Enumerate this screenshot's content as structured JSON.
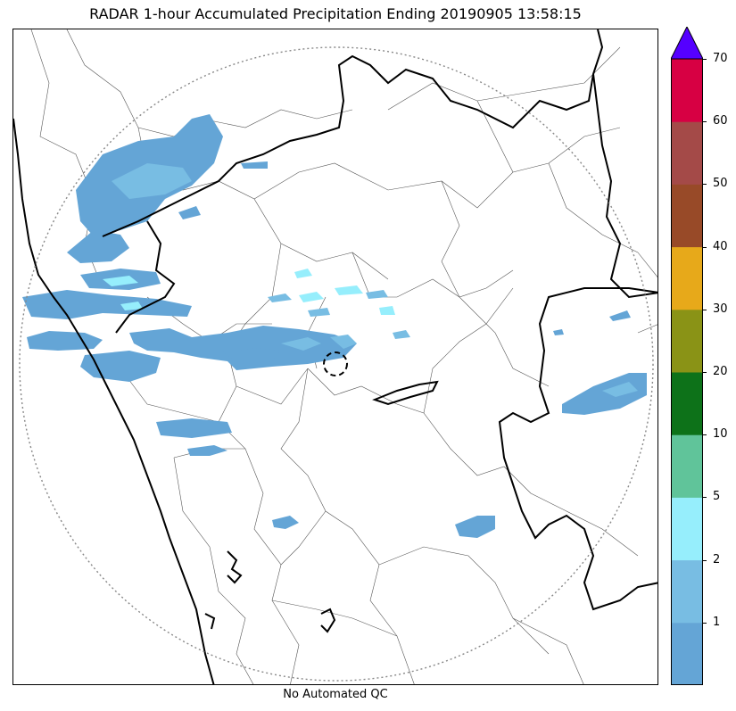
{
  "title": "RADAR 1-hour Accumulated Precipitation Ending 20190905 13:58:15",
  "footer_note": "No Automated QC",
  "colorbar": {
    "extend": "max",
    "over_color": "#5500ff",
    "bins": [
      {
        "color": "#64a5d6"
      },
      {
        "color": "#78bde3"
      },
      {
        "color": "#96eefc"
      },
      {
        "color": "#60c49a"
      },
      {
        "color": "#0d7219"
      },
      {
        "color": "#8a9316"
      },
      {
        "color": "#e7a91a"
      },
      {
        "color": "#984a28"
      },
      {
        "color": "#a44a48"
      },
      {
        "color": "#d70043"
      }
    ],
    "ticks": [
      "1",
      "2",
      "5",
      "10",
      "20",
      "30",
      "40",
      "50",
      "60",
      "70"
    ]
  },
  "map": {
    "radar_range_ring": "dotted gray circle",
    "radar_site_marker": "dashed black circle",
    "precip_color_light": "#64a5d6",
    "precip_color_medium": "#78bde3",
    "precip_color_heavy": "#96eefc",
    "boundary_color": "#000000"
  }
}
